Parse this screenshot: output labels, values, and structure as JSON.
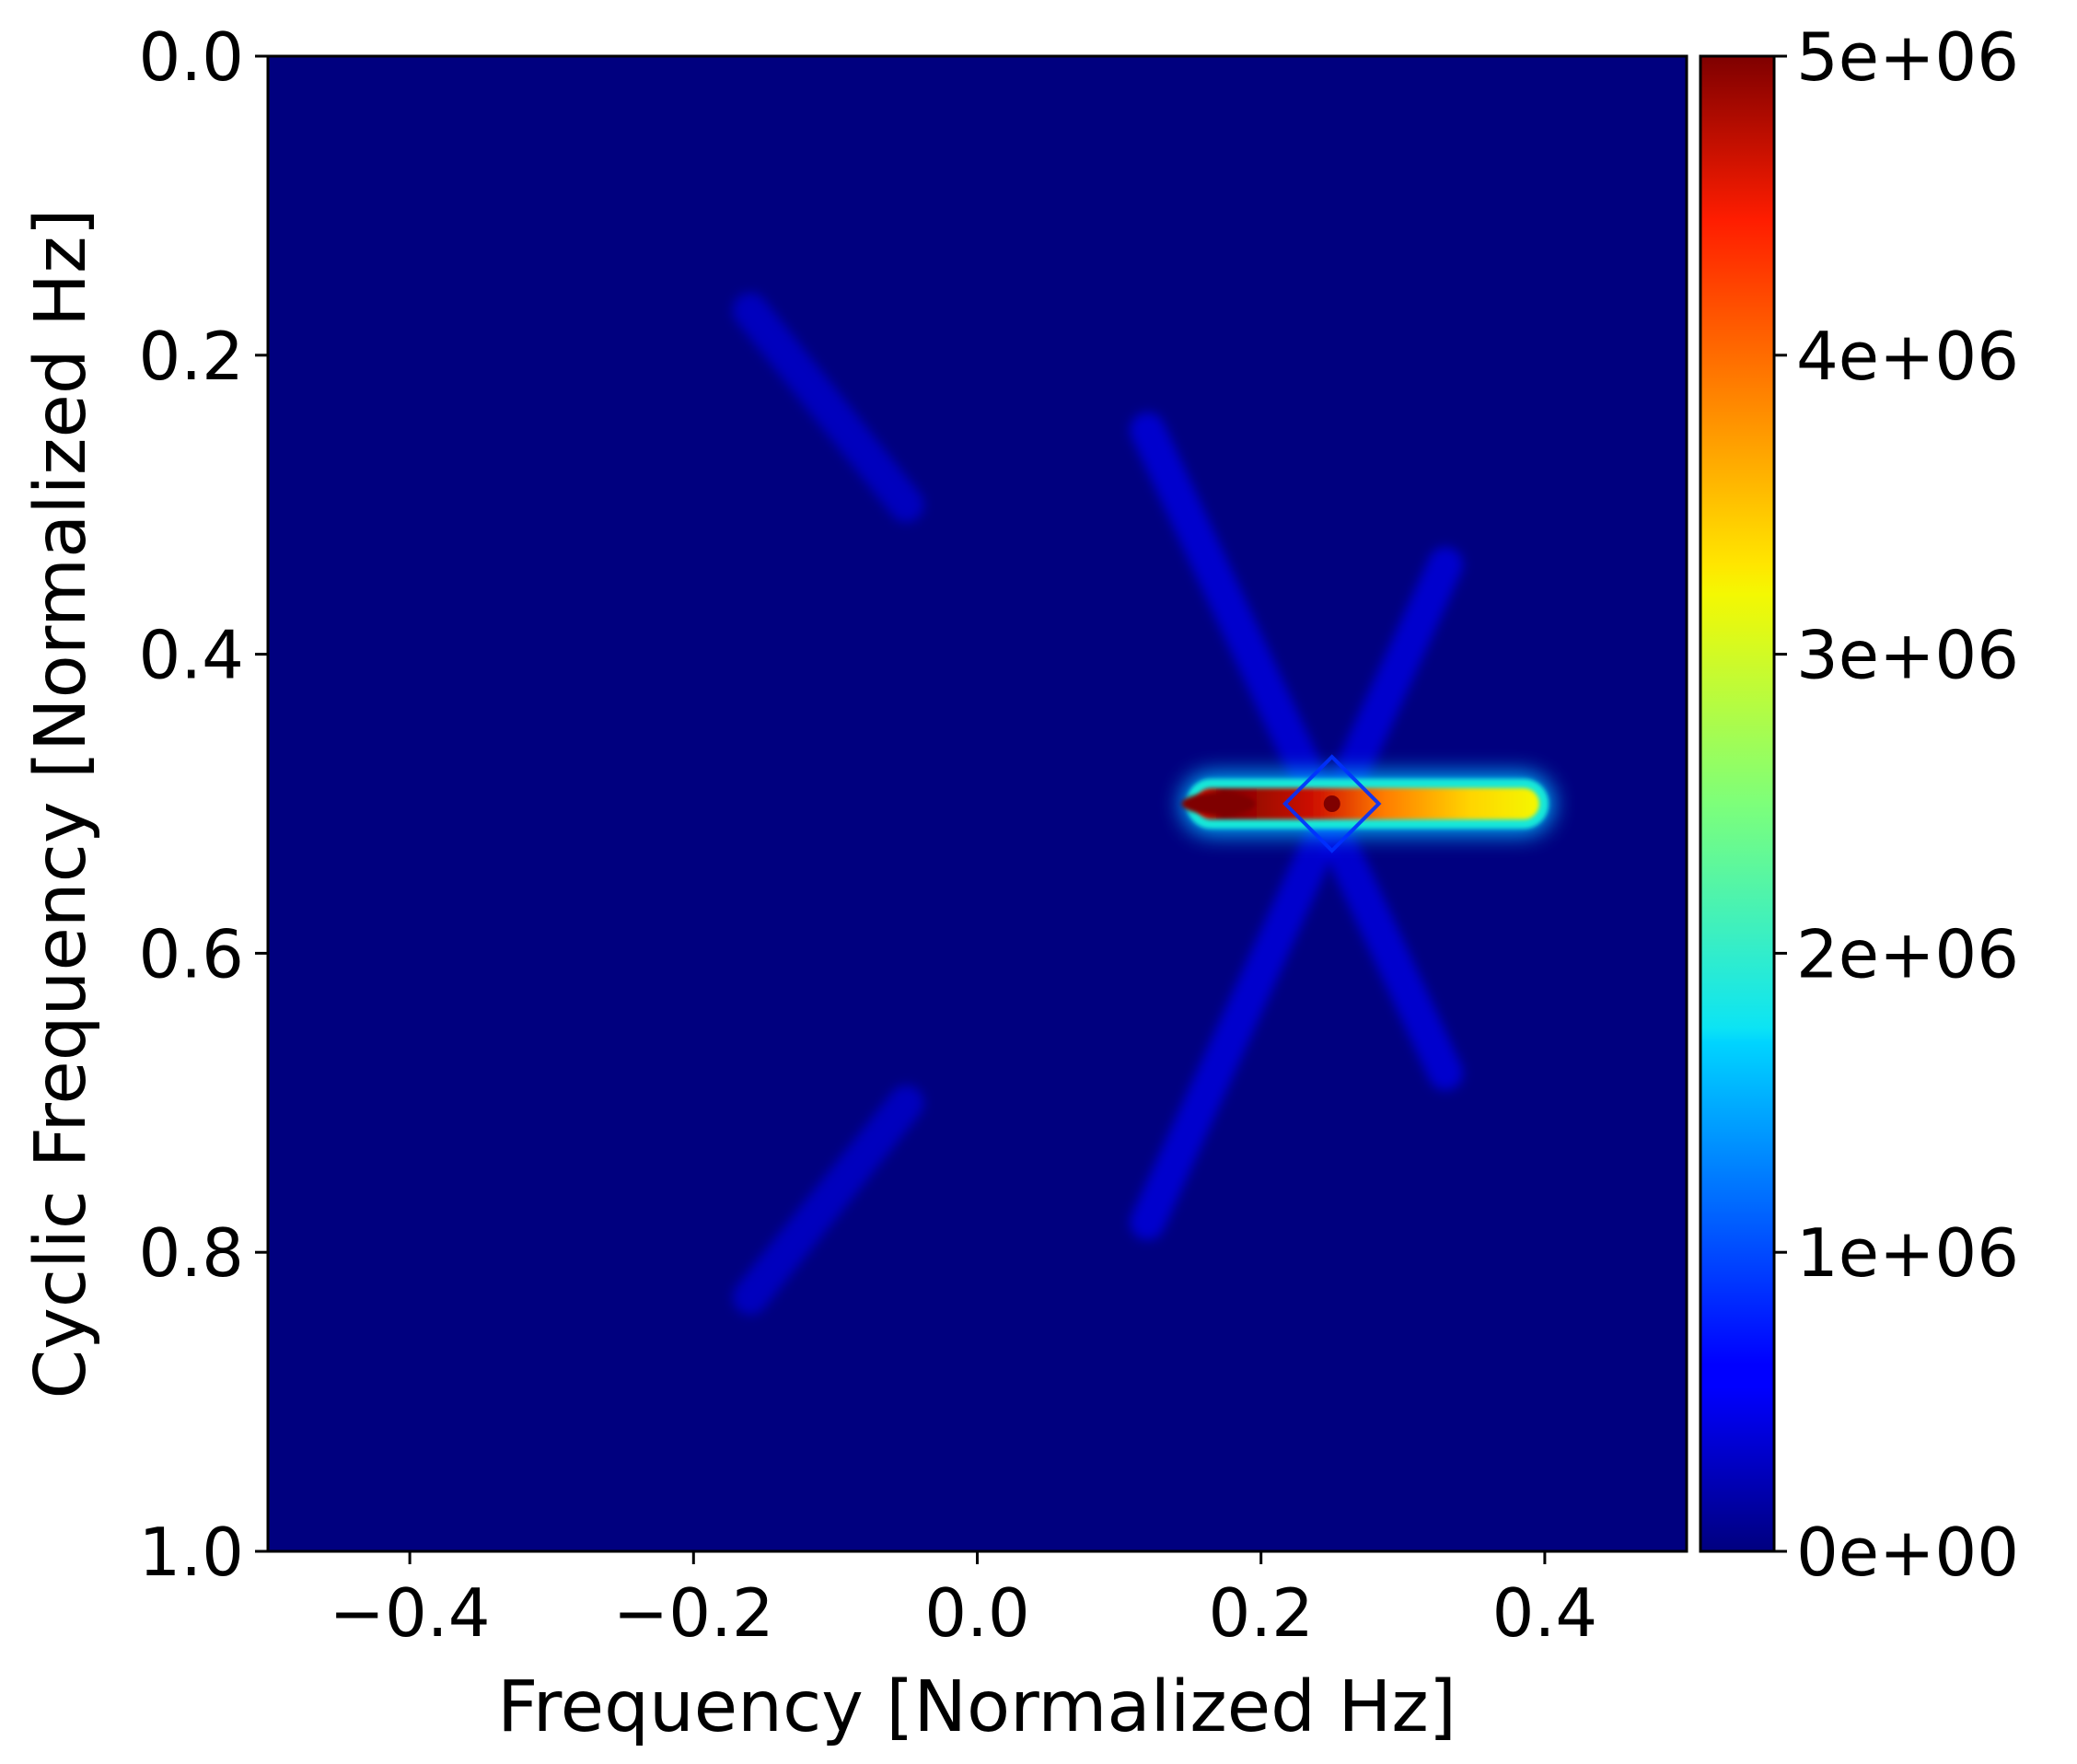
{
  "chart_data": {
    "type": "heatmap",
    "title": "",
    "xlabel": "Frequency [Normalized Hz]",
    "ylabel": "Cyclic Frequency [Normalized Hz]",
    "xlim": [
      -0.5,
      0.5
    ],
    "ylim": [
      1.0,
      0.0
    ],
    "x_ticks": [
      -0.4,
      -0.2,
      0.0,
      0.2,
      0.4
    ],
    "x_tick_labels": [
      "−0.4",
      "−0.2",
      "0.0",
      "0.2",
      "0.4"
    ],
    "y_ticks": [
      0.0,
      0.2,
      0.4,
      0.6,
      0.8,
      1.0
    ],
    "y_tick_labels": [
      "0.0",
      "0.2",
      "0.4",
      "0.6",
      "0.8",
      "1.0"
    ],
    "colormap": "jet",
    "colorbar": {
      "range": [
        0,
        5000000
      ],
      "ticks": [
        0,
        1000000,
        2000000,
        3000000,
        4000000,
        5000000
      ],
      "tick_labels": [
        "0e+00",
        "1e+06",
        "2e+06",
        "3e+06",
        "4e+06",
        "5e+06"
      ]
    },
    "features": [
      {
        "kind": "band",
        "x_range": [
          0.15,
          0.4
        ],
        "y": 0.5,
        "peak_x": 0.17,
        "peak_value": 5000000,
        "tail_value": 3200000
      },
      {
        "kind": "point",
        "x": 0.25,
        "y": 0.5,
        "value": 5000000
      },
      {
        "kind": "diagonal",
        "from": [
          0.12,
          0.25
        ],
        "to": [
          0.33,
          0.68
        ],
        "value": 150000
      },
      {
        "kind": "diagonal",
        "from": [
          0.33,
          0.34
        ],
        "to": [
          0.12,
          0.78
        ],
        "value": 150000
      },
      {
        "kind": "diagonal",
        "from": [
          -0.16,
          0.17
        ],
        "to": [
          -0.05,
          0.3
        ],
        "value": 60000
      },
      {
        "kind": "diagonal",
        "from": [
          -0.16,
          0.83
        ],
        "to": [
          -0.05,
          0.7
        ],
        "value": 60000
      }
    ],
    "grid": false,
    "legend": "none"
  }
}
